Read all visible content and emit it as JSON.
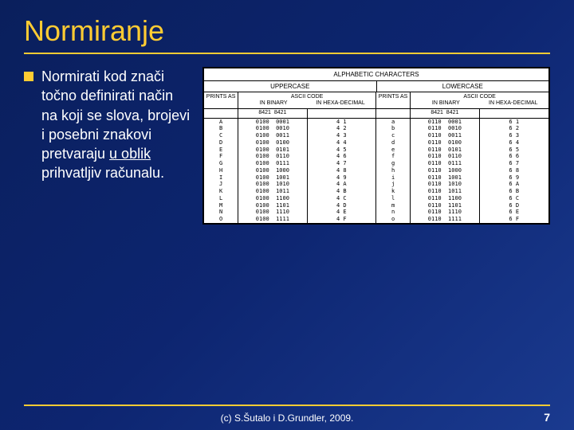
{
  "title": "Normiranje",
  "bullet": {
    "plain1": "Normirati kod znači točno definirati način na koji se slova, brojevi i posebni znakovi pretvaraju ",
    "link": "u oblik",
    "plain2": " prihvatljiv računalu."
  },
  "table": {
    "top": "ALPHABETIC   CHARACTERS",
    "upper_label": "UPPERCASE",
    "lower_label": "LOWERCASE",
    "ascii_code": "ASCII  CODE",
    "prints_as": "PRINTS AS",
    "in_binary": "IN BINARY",
    "in_hexa": "IN HEXA-DECIMAL",
    "sub_left": "8421",
    "sub_right": "8421",
    "rows_upper": [
      {
        "p": "A",
        "b1": "0100",
        "b2": "0001",
        "h": "4 1"
      },
      {
        "p": "B",
        "b1": "0100",
        "b2": "0010",
        "h": "4 2"
      },
      {
        "p": "C",
        "b1": "0100",
        "b2": "0011",
        "h": "4 3"
      },
      {
        "p": "D",
        "b1": "0100",
        "b2": "0100",
        "h": "4 4"
      },
      {
        "p": "E",
        "b1": "0100",
        "b2": "0101",
        "h": "4 5"
      },
      {
        "p": "F",
        "b1": "0100",
        "b2": "0110",
        "h": "4 6"
      },
      {
        "p": "G",
        "b1": "0100",
        "b2": "0111",
        "h": "4 7"
      },
      {
        "p": "H",
        "b1": "0100",
        "b2": "1000",
        "h": "4 8"
      },
      {
        "p": "I",
        "b1": "0100",
        "b2": "1001",
        "h": "4 9"
      },
      {
        "p": "J",
        "b1": "0100",
        "b2": "1010",
        "h": "4 A"
      },
      {
        "p": "K",
        "b1": "0100",
        "b2": "1011",
        "h": "4 B"
      },
      {
        "p": "L",
        "b1": "0100",
        "b2": "1100",
        "h": "4 C"
      },
      {
        "p": "M",
        "b1": "0100",
        "b2": "1101",
        "h": "4 D"
      },
      {
        "p": "N",
        "b1": "0100",
        "b2": "1110",
        "h": "4 E"
      },
      {
        "p": "O",
        "b1": "0100",
        "b2": "1111",
        "h": "4 F"
      }
    ],
    "rows_lower": [
      {
        "p": "a",
        "b1": "0110",
        "b2": "0001",
        "h": "6 1"
      },
      {
        "p": "b",
        "b1": "0110",
        "b2": "0010",
        "h": "6 2"
      },
      {
        "p": "c",
        "b1": "0110",
        "b2": "0011",
        "h": "6 3"
      },
      {
        "p": "d",
        "b1": "0110",
        "b2": "0100",
        "h": "6 4"
      },
      {
        "p": "e",
        "b1": "0110",
        "b2": "0101",
        "h": "6 5"
      },
      {
        "p": "f",
        "b1": "0110",
        "b2": "0110",
        "h": "6 6"
      },
      {
        "p": "g",
        "b1": "0110",
        "b2": "0111",
        "h": "6 7"
      },
      {
        "p": "h",
        "b1": "0110",
        "b2": "1000",
        "h": "6 8"
      },
      {
        "p": "i",
        "b1": "0110",
        "b2": "1001",
        "h": "6 9"
      },
      {
        "p": "j",
        "b1": "0110",
        "b2": "1010",
        "h": "6 A"
      },
      {
        "p": "k",
        "b1": "0110",
        "b2": "1011",
        "h": "6 B"
      },
      {
        "p": "l",
        "b1": "0110",
        "b2": "1100",
        "h": "6 C"
      },
      {
        "p": "m",
        "b1": "0110",
        "b2": "1101",
        "h": "6 D"
      },
      {
        "p": "n",
        "b1": "0110",
        "b2": "1110",
        "h": "6 E"
      },
      {
        "p": "o",
        "b1": "0110",
        "b2": "1111",
        "h": "6 F"
      }
    ]
  },
  "footer": {
    "center": "(c) S.Šutalo i D.Grundler, 2009.",
    "page": "7"
  },
  "colors": {
    "accent": "#ffcc33",
    "bg_start": "#0a1f5c",
    "bg_end": "#1a3a8f"
  }
}
